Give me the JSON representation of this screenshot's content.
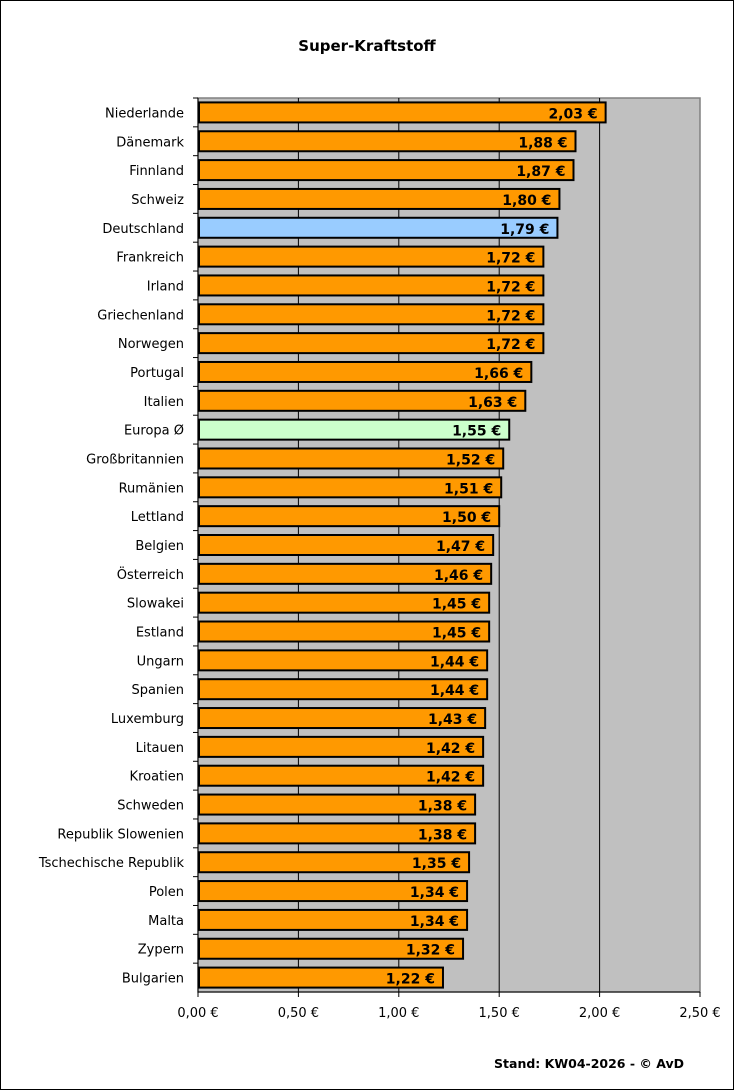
{
  "chart_data": {
    "type": "bar",
    "orientation": "horizontal",
    "title": "Super-Kraftstoff",
    "footer": "Stand: KW04-2026 - © AvD",
    "categories": [
      "Niederlande",
      "Dänemark",
      "Finnland",
      "Schweiz",
      "Deutschland",
      "Frankreich",
      "Irland",
      "Griechenland",
      "Norwegen",
      "Portugal",
      "Italien",
      "Europa Ø",
      "Großbritannien",
      "Rumänien",
      "Lettland",
      "Belgien",
      "Österreich",
      "Slowakei",
      "Estland",
      "Ungarn",
      "Spanien",
      "Luxemburg",
      "Litauen",
      "Kroatien",
      "Schweden",
      "Republik Slowenien",
      "Tschechische Republik",
      "Polen",
      "Malta",
      "Zypern",
      "Bulgarien"
    ],
    "values": [
      2.03,
      1.88,
      1.87,
      1.8,
      1.79,
      1.72,
      1.72,
      1.72,
      1.72,
      1.66,
      1.63,
      1.55,
      1.52,
      1.51,
      1.5,
      1.47,
      1.46,
      1.45,
      1.45,
      1.44,
      1.44,
      1.43,
      1.42,
      1.42,
      1.38,
      1.38,
      1.35,
      1.34,
      1.34,
      1.32,
      1.22
    ],
    "data_labels": [
      "2,03 €",
      "1,88 €",
      "1,87 €",
      "1,80 €",
      "1,79 €",
      "1,72 €",
      "1,72 €",
      "1,72 €",
      "1,72 €",
      "1,66 €",
      "1,63 €",
      "1,55 €",
      "1,52 €",
      "1,51 €",
      "1,50 €",
      "1,47 €",
      "1,46 €",
      "1,45 €",
      "1,45 €",
      "1,44 €",
      "1,44 €",
      "1,43 €",
      "1,42 €",
      "1,42 €",
      "1,38 €",
      "1,38 €",
      "1,35 €",
      "1,34 €",
      "1,34 €",
      "1,32 €",
      "1,22 €"
    ],
    "xlim": [
      0,
      2.5
    ],
    "x_ticks": [
      0,
      0.5,
      1.0,
      1.5,
      2.0,
      2.5
    ],
    "x_tick_labels": [
      "0,00 €",
      "0,50 €",
      "1,00 €",
      "1,50 €",
      "2,00 €",
      "2,50 €"
    ],
    "grid": "vertical",
    "colors": {
      "default": "#FF9900",
      "Deutschland": "#99CCFF",
      "Europa Ø": "#CCFFCC",
      "plot_background": "#C0C0C0"
    }
  }
}
